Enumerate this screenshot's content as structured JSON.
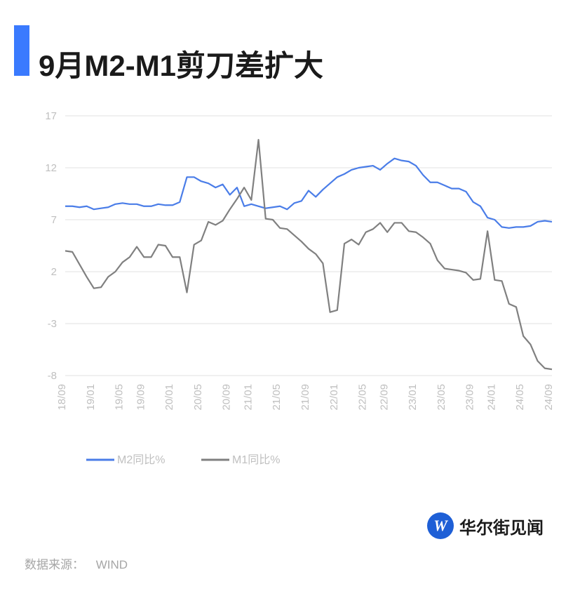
{
  "title": "9月M2-M1剪刀差扩大",
  "source_label": "数据来源：",
  "source_value": "WIND",
  "logo_letter": "W",
  "logo_text": "华尔街见闻",
  "chart": {
    "type": "line",
    "ylim": [
      -8,
      17
    ],
    "ytick_step": 5,
    "yticks": [
      -8,
      -3,
      2,
      7,
      12,
      17
    ],
    "x_labels": [
      "18/09",
      "19/01",
      "19/05",
      "19/09",
      "20/01",
      "20/05",
      "20/09",
      "21/01",
      "21/05",
      "21/09",
      "22/01",
      "22/05",
      "22/09",
      "23/01",
      "23/05",
      "23/09",
      "24/01",
      "24/05",
      "24/09"
    ],
    "grid_color": "#e0e0e0",
    "axis_label_color": "#bfbfbf",
    "axis_label_fontsize": 15,
    "background_color": "#ffffff",
    "legend": {
      "items": [
        {
          "label": "M2同比%",
          "color": "#4a7de8"
        },
        {
          "label": "M1同比%",
          "color": "#808080"
        }
      ],
      "line_width": 3
    },
    "series": [
      {
        "name": "M2同比%",
        "color": "#4a7de8",
        "line_width": 2.2,
        "values": [
          8.3,
          8.3,
          8.2,
          8.3,
          8.0,
          8.1,
          8.2,
          8.5,
          8.6,
          8.5,
          8.5,
          8.3,
          8.3,
          8.5,
          8.4,
          8.4,
          8.7,
          11.1,
          11.1,
          10.7,
          10.5,
          10.1,
          10.4,
          9.4,
          10.1,
          8.3,
          8.5,
          8.3,
          8.1,
          8.2,
          8.3,
          8.0,
          8.6,
          8.8,
          9.8,
          9.2,
          9.9,
          10.5,
          11.1,
          11.4,
          11.8,
          12.0,
          12.1,
          12.2,
          11.8,
          12.4,
          12.9,
          12.7,
          12.6,
          12.2,
          11.3,
          10.6,
          10.6,
          10.3,
          10.0,
          10.0,
          9.7,
          8.7,
          8.3,
          7.2,
          7.0,
          6.3,
          6.2,
          6.3,
          6.3,
          6.4,
          6.8,
          6.9,
          6.8
        ]
      },
      {
        "name": "M1同比%",
        "color": "#808080",
        "line_width": 2.2,
        "values": [
          4.0,
          3.9,
          2.7,
          1.5,
          0.4,
          0.5,
          1.5,
          2.0,
          2.9,
          3.4,
          4.4,
          3.4,
          3.4,
          4.6,
          4.5,
          3.4,
          3.4,
          0.0,
          4.6,
          5.0,
          6.8,
          6.5,
          6.9,
          8.0,
          9.0,
          10.1,
          8.9,
          14.7,
          7.1,
          7.0,
          6.2,
          6.1,
          5.5,
          4.9,
          4.2,
          3.7,
          2.8,
          -1.9,
          -1.7,
          4.7,
          5.1,
          4.6,
          5.8,
          6.1,
          6.7,
          5.8,
          6.7,
          6.7,
          5.9,
          5.8,
          5.3,
          4.7,
          3.1,
          2.3,
          2.2,
          2.1,
          1.9,
          1.2,
          1.3,
          5.9,
          1.2,
          1.1,
          -1.1,
          -1.4,
          -4.2,
          -5.0,
          -6.6,
          -7.3,
          -7.4
        ]
      }
    ]
  }
}
